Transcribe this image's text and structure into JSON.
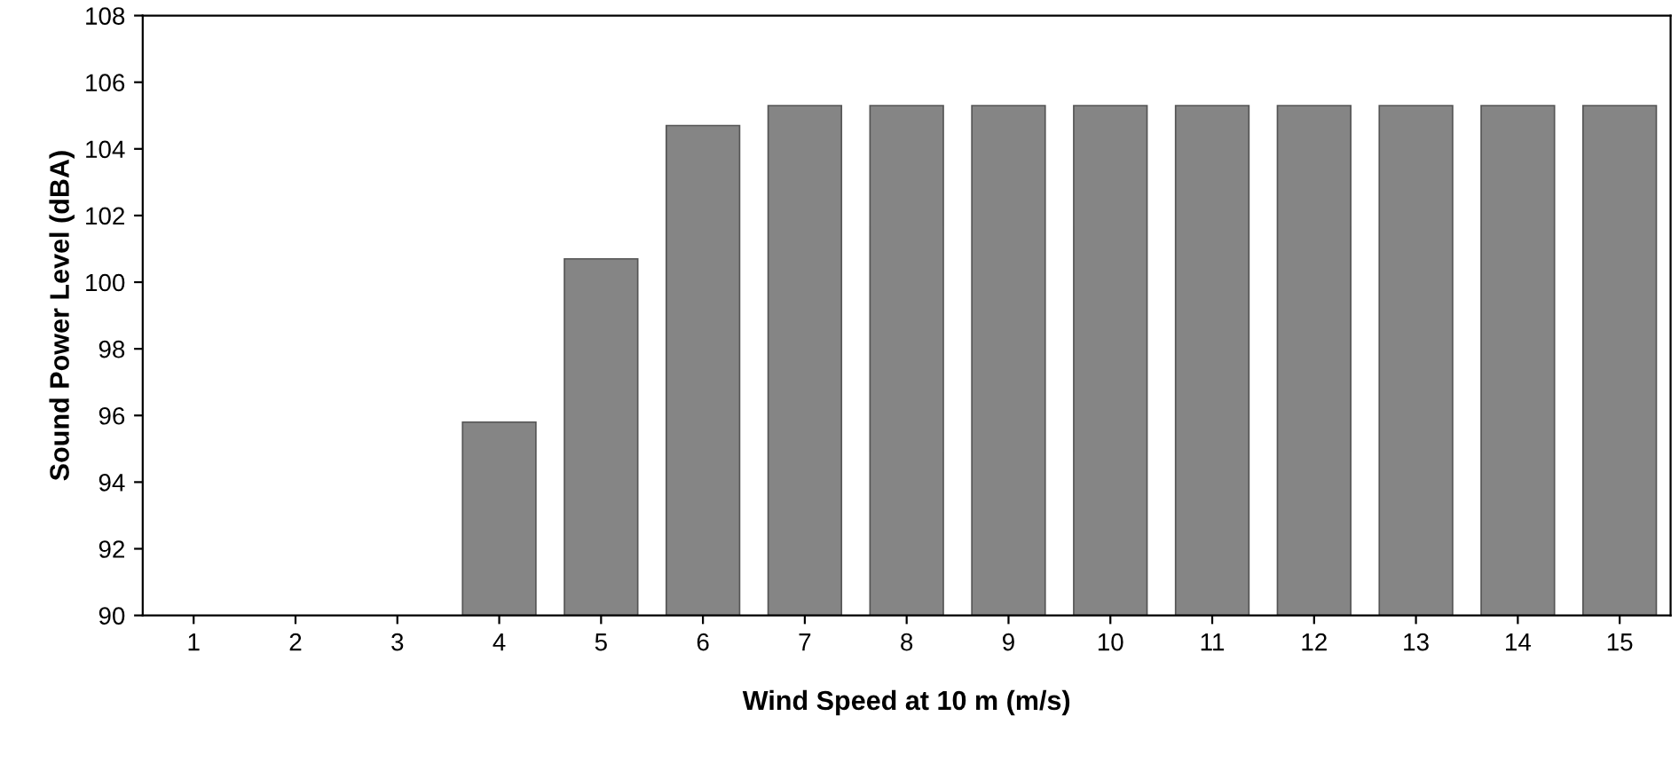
{
  "chart_data": {
    "type": "bar",
    "xlabel": "Wind Speed at 10 m (m/s)",
    "ylabel": "Sound Power Level (dBA)",
    "categories": [
      "1",
      "2",
      "3",
      "4",
      "5",
      "6",
      "7",
      "8",
      "9",
      "10",
      "11",
      "12",
      "13",
      "14",
      "15"
    ],
    "values": [
      null,
      null,
      null,
      95.8,
      100.7,
      104.7,
      105.3,
      105.3,
      105.3,
      105.3,
      105.3,
      105.3,
      105.3,
      105.3,
      105.3
    ],
    "color": "#858585",
    "ylim": [
      90,
      108
    ],
    "yticks": [
      90,
      92,
      94,
      96,
      98,
      100,
      102,
      104,
      106,
      108
    ],
    "grid": false,
    "legend": false
  }
}
